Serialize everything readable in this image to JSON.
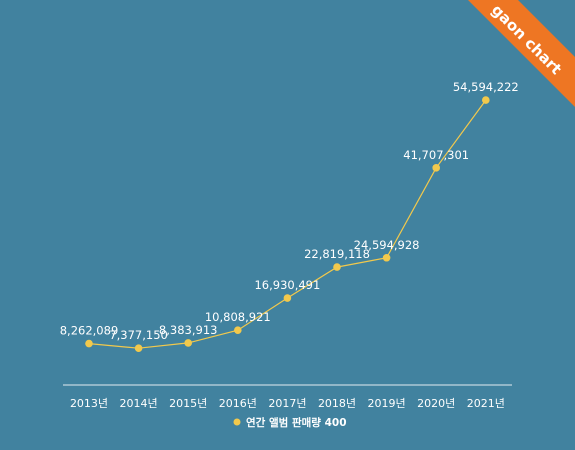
{
  "chart_data": {
    "type": "line",
    "categories": [
      "2013년",
      "2014년",
      "2015년",
      "2016년",
      "2017년",
      "2018년",
      "2019년",
      "2020년",
      "2021년"
    ],
    "series": [
      {
        "name": "연간 앨범 판매량 400",
        "values": [
          8262089,
          7377150,
          8383913,
          10808921,
          16930491,
          22819118,
          24594928,
          41707301,
          54594222
        ],
        "labels": [
          "8,262,089",
          "7,377,150",
          "8,383,913",
          "10,808,921",
          "16,930,491",
          "22,819,118",
          "24,594,928",
          "41,707,301",
          "54,594,222"
        ]
      }
    ],
    "title": "",
    "xlabel": "",
    "ylabel": "",
    "ylim": [
      0,
      60000000
    ],
    "grid": false,
    "legend": "bottom",
    "colors": {
      "background": "#41829f",
      "line": "#f2c94c",
      "axis": "#ffffff",
      "ribbon": "#ee7623"
    }
  },
  "brand": {
    "label": "gaon chart"
  }
}
